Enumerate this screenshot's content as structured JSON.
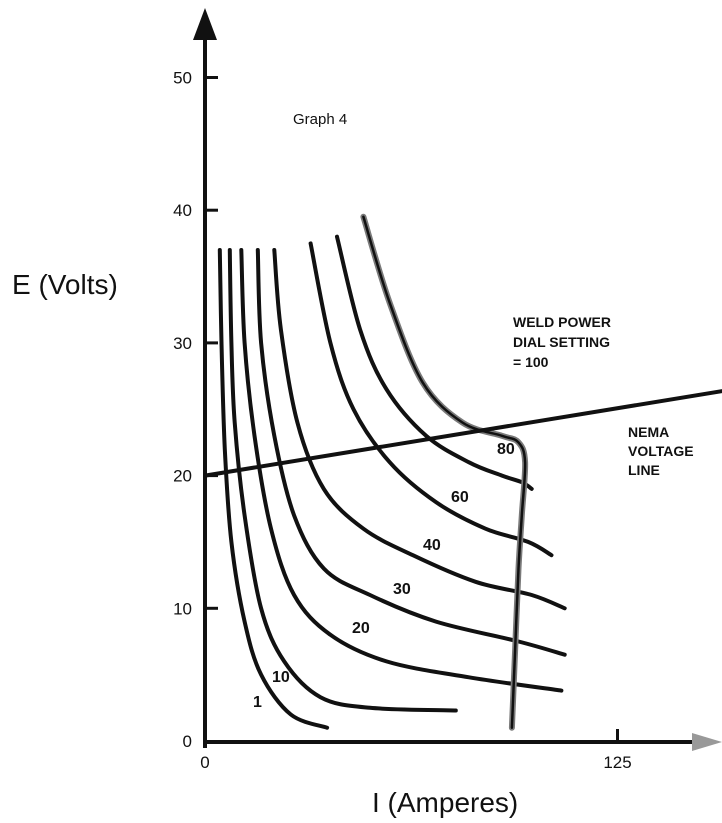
{
  "chart_data": {
    "type": "line",
    "title": "Graph 4",
    "xlabel": "I (Amperes)",
    "ylabel": "E (Volts)",
    "xlim": [
      0,
      160
    ],
    "ylim": [
      0,
      52
    ],
    "x_ticks": [
      {
        "value": 0,
        "label": "0"
      },
      {
        "value": 125,
        "label": "125"
      }
    ],
    "y_ticks": [
      {
        "value": 0,
        "label": "0"
      },
      {
        "value": 10,
        "label": "10"
      },
      {
        "value": 20,
        "label": "20"
      },
      {
        "value": 30,
        "label": "30"
      },
      {
        "value": 40,
        "label": "40"
      },
      {
        "value": 50,
        "label": "50"
      }
    ],
    "grid": false,
    "series": [
      {
        "name": "1",
        "points": [
          [
            4.5,
            37
          ],
          [
            5,
            30
          ],
          [
            6,
            22
          ],
          [
            8,
            15
          ],
          [
            12,
            9
          ],
          [
            17,
            5
          ],
          [
            26,
            2
          ],
          [
            37,
            1
          ]
        ]
      },
      {
        "name": "10",
        "points": [
          [
            7.5,
            37
          ],
          [
            8,
            30
          ],
          [
            9,
            24
          ],
          [
            12,
            17
          ],
          [
            17,
            10
          ],
          [
            24,
            6
          ],
          [
            35,
            3.3
          ],
          [
            50,
            2.5
          ],
          [
            76,
            2.3
          ]
        ]
      },
      {
        "name": "20",
        "points": [
          [
            11,
            37
          ],
          [
            12,
            30
          ],
          [
            15,
            23
          ],
          [
            20,
            16
          ],
          [
            27,
            11
          ],
          [
            38,
            8
          ],
          [
            55,
            6
          ],
          [
            80,
            4.8
          ],
          [
            108,
            3.8
          ]
        ]
      },
      {
        "name": "30",
        "points": [
          [
            16,
            37
          ],
          [
            17,
            30
          ],
          [
            21,
            23
          ],
          [
            27,
            17
          ],
          [
            36,
            13
          ],
          [
            50,
            11
          ],
          [
            70,
            9
          ],
          [
            95,
            7.5
          ],
          [
            109,
            6.5
          ]
        ]
      },
      {
        "name": "40",
        "points": [
          [
            21,
            37
          ],
          [
            23,
            31
          ],
          [
            28,
            24
          ],
          [
            36,
            19
          ],
          [
            48,
            16
          ],
          [
            63,
            14
          ],
          [
            82,
            12
          ],
          [
            99,
            11
          ],
          [
            109,
            10
          ]
        ]
      },
      {
        "name": "60",
        "points": [
          [
            32,
            37.5
          ],
          [
            38,
            30
          ],
          [
            45,
            25
          ],
          [
            56,
            21
          ],
          [
            70,
            18
          ],
          [
            85,
            16
          ],
          [
            98,
            15
          ],
          [
            105,
            14
          ]
        ]
      },
      {
        "name": "80",
        "points": [
          [
            40,
            38
          ],
          [
            47,
            31
          ],
          [
            55,
            26.5
          ],
          [
            67,
            23
          ],
          [
            80,
            21
          ],
          [
            90,
            20
          ],
          [
            96,
            19.5
          ],
          [
            99,
            19
          ]
        ]
      },
      {
        "name": "100",
        "points": [
          [
            48,
            39.5
          ],
          [
            56,
            33
          ],
          [
            66,
            27
          ],
          [
            78,
            24
          ],
          [
            90,
            23
          ],
          [
            95,
            22.5
          ],
          [
            97,
            21
          ],
          [
            96,
            17
          ],
          [
            95,
            13
          ],
          [
            94,
            7
          ],
          [
            93,
            1
          ]
        ]
      }
    ],
    "nema_line": [
      [
        0,
        20
      ],
      [
        160,
        26.5
      ]
    ],
    "labels": {
      "curve_labels": [
        "1",
        "10",
        "20",
        "30",
        "40",
        "60",
        "80"
      ],
      "weld_power": [
        "WELD POWER",
        "DIAL SETTING",
        "= 100"
      ],
      "nema": [
        "NEMA",
        "VOLTAGE",
        "LINE"
      ]
    },
    "colors": {
      "ink": "#111111",
      "weld_100_curve": "#7a7a7a",
      "x_arrow": "#999999"
    }
  }
}
